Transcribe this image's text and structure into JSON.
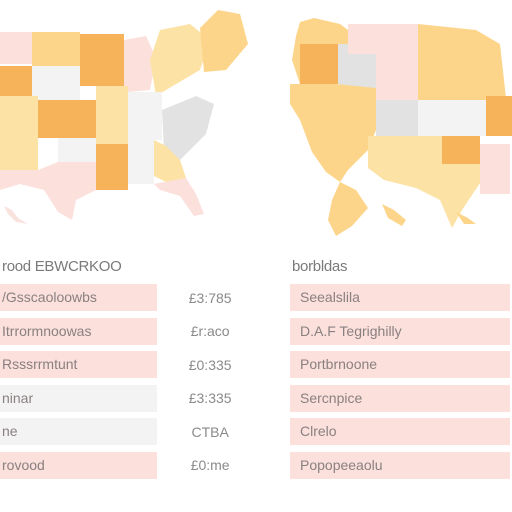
{
  "colors": {
    "orange": "#f7b35a",
    "light_orange": "#fdd58a",
    "yellow": "#fde2a6",
    "pink": "#fbe0dc",
    "light_pink": "#f9e3df",
    "grey": "#e2e2e2",
    "row_pink": "#fbe0dc",
    "row_grey": "#f3f3f3"
  },
  "left_table": {
    "header": "rood EBWCRKOO",
    "rows": [
      {
        "name": "/Gsscaoloowbs",
        "value": "£3:785",
        "tone": "pink"
      },
      {
        "name": "Itrrormnoowas",
        "value": "£r:aco",
        "tone": "pink"
      },
      {
        "name": "Rsssrrmtunt",
        "value": "£0:335",
        "tone": "pink"
      },
      {
        "name": "ninar",
        "value": "£3:335",
        "tone": "grey"
      },
      {
        "name": "ne",
        "value": "CTBA",
        "tone": "grey"
      },
      {
        "name": "rovood",
        "value": "£0:me",
        "tone": "pink"
      }
    ]
  },
  "right_table": {
    "header": "borbldas",
    "rows": [
      {
        "name": "Seealslila",
        "tone": "pink"
      },
      {
        "name": "D.A.F Tegrighilly",
        "tone": "pink"
      },
      {
        "name": "Portbrnoone",
        "tone": "pink"
      },
      {
        "name": "Sercnpice",
        "tone": "pink"
      },
      {
        "name": "Clrelo",
        "tone": "pink"
      },
      {
        "name": "Popopeeaolu",
        "tone": "pink"
      }
    ]
  }
}
